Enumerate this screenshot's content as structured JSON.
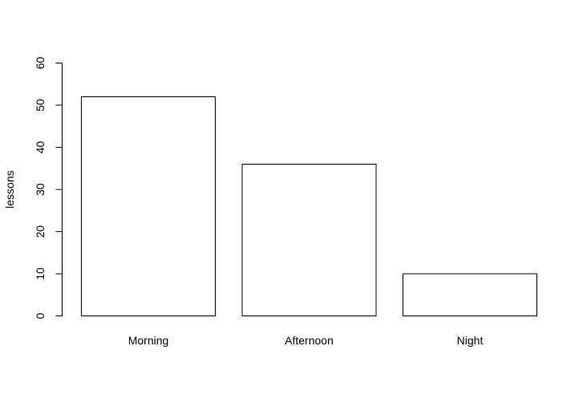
{
  "chart_data": {
    "type": "bar",
    "title": "",
    "xlabel": "",
    "ylabel": "lessons",
    "categories": [
      "Morning",
      "Afternoon",
      "Night"
    ],
    "values": [
      52,
      36,
      10
    ],
    "ylim": [
      0,
      60
    ],
    "yticks": [
      0,
      10,
      20,
      30,
      40,
      50,
      60
    ],
    "grid": false,
    "legend": "none",
    "colors": {
      "bar_fill": "#ffffff",
      "bar_stroke": "#000000",
      "axis": "#000000",
      "background": "#ffffff"
    }
  }
}
